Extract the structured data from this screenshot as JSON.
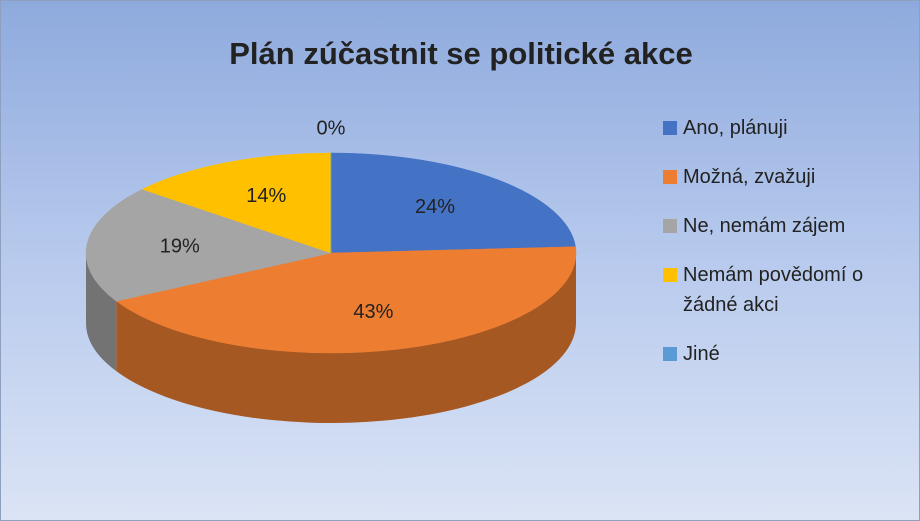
{
  "chart_data": {
    "type": "pie",
    "title": "Plán zúčastnit se politické akce",
    "categories": [
      "Ano, plánuji",
      "Možná, zvažuji",
      "Ne, nemám zájem",
      "Nemám povědomí o žádné akci",
      "Jiné"
    ],
    "values": [
      24,
      43,
      19,
      14,
      0
    ],
    "value_labels": [
      "24%",
      "43%",
      "19%",
      "14%",
      "0%"
    ],
    "colors": [
      "#4472c4",
      "#ed7d31",
      "#a5a5a5",
      "#ffc000",
      "#5b9bd5"
    ],
    "legend": "right"
  }
}
